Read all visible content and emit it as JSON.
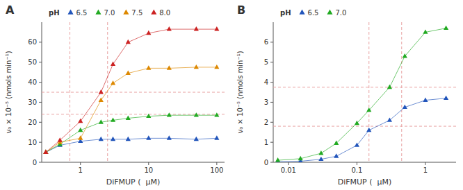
{
  "chart_data": [
    {
      "type": "scatter",
      "title": "A",
      "x_label": "DiFMUP (  μM)",
      "y_label": "v₀ × 10⁻⁵ (nmols min⁻¹)",
      "log": "x",
      "xlim": [
        0.27,
        130
      ],
      "xticks": [
        1,
        10,
        100
      ],
      "ylim": [
        0,
        70
      ],
      "yticks": [
        0,
        10,
        20,
        30,
        40,
        50,
        60
      ],
      "grid": false,
      "legend": "top",
      "legend_title": "pH",
      "series": [
        {
          "name": "6.5",
          "color": "#2255bb",
          "marker": "triangle",
          "line_style": "solid",
          "x": [
            0.31,
            0.5,
            1.0,
            2.0,
            3.0,
            5.0,
            10.0,
            20.0,
            50.0,
            100.0
          ],
          "values": [
            5.0,
            8.5,
            10.5,
            11.5,
            11.5,
            11.5,
            12.0,
            12.0,
            11.5,
            12.0
          ]
        },
        {
          "name": "7.0",
          "color": "#22aa22",
          "marker": "triangle",
          "line_style": "solid",
          "x": [
            0.31,
            0.5,
            1.0,
            2.0,
            3.0,
            5.0,
            10.0,
            20.0,
            50.0,
            100.0
          ],
          "values": [
            5.0,
            9.0,
            16.0,
            20.0,
            21.0,
            22.0,
            23.0,
            23.5,
            23.5,
            23.5
          ]
        },
        {
          "name": "7.5",
          "color": "#dd8800",
          "marker": "triangle",
          "line_style": "solid",
          "x": [
            0.31,
            0.5,
            1.0,
            2.0,
            3.0,
            5.0,
            10.0,
            20.0,
            50.0,
            100.0
          ],
          "values": [
            5.0,
            10.0,
            12.0,
            31.0,
            39.5,
            44.5,
            47.0,
            47.0,
            47.5,
            47.5
          ]
        },
        {
          "name": "8.0",
          "color": "#cc2222",
          "marker": "triangle",
          "line_style": "solid",
          "x": [
            0.31,
            0.5,
            1.0,
            2.0,
            3.0,
            5.0,
            10.0,
            20.0,
            50.0,
            100.0
          ],
          "values": [
            5.0,
            11.0,
            20.5,
            35.0,
            49.0,
            60.0,
            64.5,
            66.5,
            66.5,
            66.5
          ]
        }
      ],
      "reference_lines": {
        "y": [
          35.0,
          24.0
        ],
        "x": [
          0.7,
          2.5
        ],
        "color": "#e8a0a0"
      }
    },
    {
      "type": "scatter",
      "title": "B",
      "x_label": "DiFMUP (  μM)",
      "y_label": "v₀ × 10⁻⁵ (nmols min⁻¹)",
      "log": "x",
      "xlim": [
        0.006,
        2.8
      ],
      "xticks": [
        0.01,
        0.1,
        1
      ],
      "ylim": [
        0,
        7
      ],
      "yticks": [
        0,
        1,
        2,
        3,
        4,
        5,
        6
      ],
      "grid": false,
      "legend": "top",
      "legend_title": "pH",
      "series": [
        {
          "name": "6.5",
          "color": "#2255bb",
          "marker": "triangle",
          "line_style": "solid",
          "x": [
            0.007,
            0.015,
            0.03,
            0.05,
            0.1,
            0.15,
            0.3,
            0.5,
            1.0,
            2.0
          ],
          "values": [
            0.03,
            0.05,
            0.15,
            0.3,
            0.85,
            1.6,
            2.1,
            2.75,
            3.1,
            3.2
          ]
        },
        {
          "name": "7.0",
          "color": "#22aa22",
          "marker": "triangle",
          "line_style": "solid",
          "x": [
            0.007,
            0.015,
            0.03,
            0.05,
            0.1,
            0.15,
            0.3,
            0.5,
            1.0,
            2.0
          ],
          "values": [
            0.1,
            0.18,
            0.45,
            0.95,
            1.95,
            2.6,
            3.75,
            5.3,
            6.5,
            6.7
          ]
        }
      ],
      "reference_lines": {
        "y": [
          3.75,
          1.8
        ],
        "x": [
          0.15,
          0.45
        ],
        "color": "#e8a0a0"
      }
    }
  ]
}
